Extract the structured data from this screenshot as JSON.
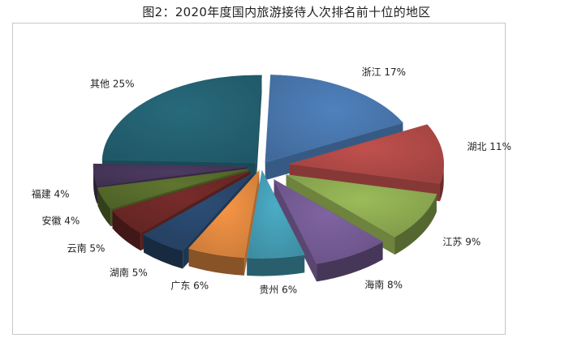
{
  "chart_data": {
    "type": "pie",
    "title": "图2：2020年度国内旅游接待人次排名前十位的地区",
    "legend": "none",
    "slices": [
      {
        "label": "浙江",
        "value": 17,
        "display": "浙江 17%",
        "color": "#4f81bd"
      },
      {
        "label": "湖北",
        "value": 11,
        "display": "湖北 11%",
        "color": "#c0504d"
      },
      {
        "label": "江苏",
        "value": 9,
        "display": "江苏 9%",
        "color": "#9bbb59"
      },
      {
        "label": "海南",
        "value": 8,
        "display": "海南 8%",
        "color": "#8064a2"
      },
      {
        "label": "贵州",
        "value": 6,
        "display": "贵州 6%",
        "color": "#4bacc6"
      },
      {
        "label": "广东",
        "value": 6,
        "display": "广东 6%",
        "color": "#f79646"
      },
      {
        "label": "湖南",
        "value": 5,
        "display": "湖南 5%",
        "color": "#2c4d75"
      },
      {
        "label": "云南",
        "value": 5,
        "display": "云南 5%",
        "color": "#772c2a"
      },
      {
        "label": "安徽",
        "value": 4,
        "display": "安徽 4%",
        "color": "#5f7530"
      },
      {
        "label": "福建",
        "value": 4,
        "display": "福建 4%",
        "color": "#4d3b62"
      },
      {
        "label": "其他",
        "value": 25,
        "display": "其他 25%",
        "color": "#276a7c"
      }
    ]
  }
}
